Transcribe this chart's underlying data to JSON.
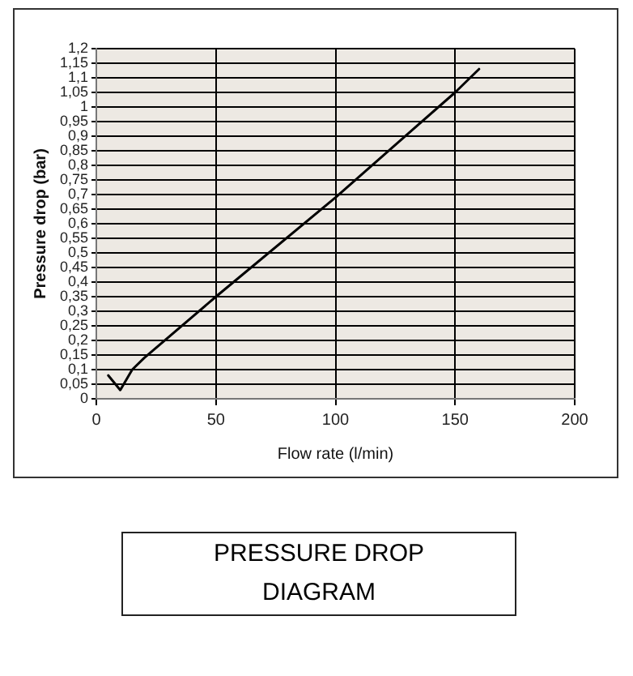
{
  "chart_data": {
    "type": "line",
    "xlabel": "Flow rate (l/min)",
    "ylabel": "Pressure drop (bar)",
    "x": [
      5,
      10,
      15,
      20,
      50,
      100,
      150,
      160
    ],
    "series": [
      {
        "color": "#000000",
        "values": [
          0.08,
          0.03,
          0.1,
          0.14,
          0.35,
          0.69,
          1.05,
          1.13
        ]
      }
    ],
    "xlim": [
      0,
      200
    ],
    "xticks": [
      0,
      50,
      100,
      150,
      200
    ],
    "ylim": [
      0,
      1.2
    ],
    "yticks": [
      0,
      {
        "value": 0.05,
        "label": "0,05"
      },
      {
        "value": 0.1,
        "label": "0,1"
      },
      {
        "value": 0.15,
        "label": "0,15"
      },
      {
        "value": 0.2,
        "label": "0,2"
      },
      {
        "value": 0.25,
        "label": "0,25"
      },
      {
        "value": 0.3,
        "label": "0,3"
      },
      {
        "value": 0.35,
        "label": "0,35"
      },
      {
        "value": 0.4,
        "label": "0,4"
      },
      {
        "value": 0.45,
        "label": "0,45"
      },
      {
        "value": 0.5,
        "label": "0,5"
      },
      {
        "value": 0.55,
        "label": "0,55"
      },
      {
        "value": 0.6,
        "label": "0,6"
      },
      {
        "value": 0.65,
        "label": "0,65"
      },
      {
        "value": 0.7,
        "label": "0,7"
      },
      {
        "value": 0.75,
        "label": "0,75"
      },
      {
        "value": 0.8,
        "label": "0,8"
      },
      {
        "value": 0.85,
        "label": "0,85"
      },
      {
        "value": 0.9,
        "label": "0,9"
      },
      {
        "value": 0.95,
        "label": "0,95"
      },
      1,
      {
        "value": 1.05,
        "label": "1,05"
      },
      {
        "value": 1.1,
        "label": "1,1"
      },
      {
        "value": 1.15,
        "label": "1,15"
      },
      {
        "value": 1.2,
        "label": "1,2"
      }
    ],
    "grid": true,
    "legend": false,
    "marker": "none",
    "line_style": "solid",
    "annotations": [
      "PRESSURE DROP DIAGRAM"
    ]
  }
}
